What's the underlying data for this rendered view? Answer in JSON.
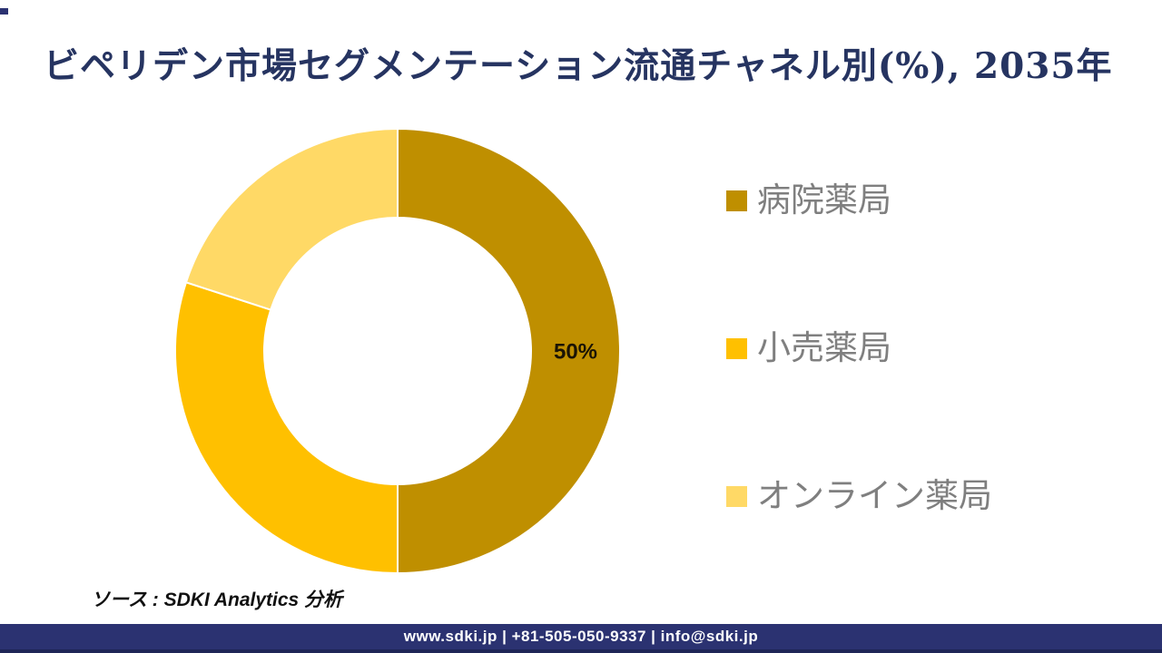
{
  "title": "ビペリデン市場セグメンテーション流通チャネル別(%), 2035年",
  "title_color": "#263461",
  "chart_data": {
    "type": "pie",
    "subtype": "donut",
    "title": "ビペリデン市場セグメンテーション流通チャネル別(%), 2035年",
    "categories": [
      "病院薬局",
      "小売薬局",
      "オンライン薬局"
    ],
    "values": [
      50,
      30,
      20
    ],
    "unit": "%",
    "colors": [
      "#BF8F00",
      "#FFC000",
      "#FFD966"
    ],
    "data_labels": [
      {
        "index": 0,
        "text": "50%"
      }
    ],
    "start_angle_deg": 0,
    "direction": "clockwise",
    "inner_radius_ratio": 0.6,
    "legend_position": "right",
    "slice_border_color": "#FFFFFF"
  },
  "legend": {
    "text_color": "#7F7F7F",
    "items": [
      {
        "label": "病院薬局",
        "color": "#BF8F00"
      },
      {
        "label": "小売薬局",
        "color": "#FFC000"
      },
      {
        "label": "オンライン薬局",
        "color": "#FFD966"
      }
    ]
  },
  "source_note": "ソース : SDKI Analytics 分析",
  "footer": {
    "text": "www.sdki.jp | +81-505-050-9337 | info@sdki.jp",
    "bar_color": "#2B3271",
    "text_color": "#FFFFFF"
  },
  "accents": {
    "corner_mark_color": "#2B3271"
  }
}
